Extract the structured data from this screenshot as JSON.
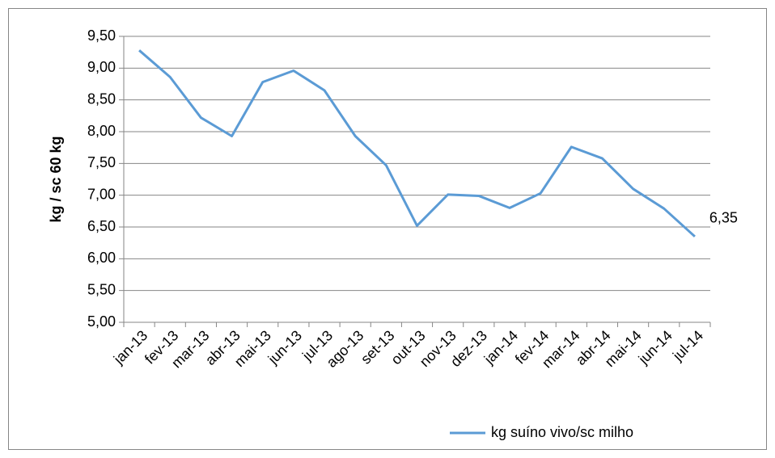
{
  "chart_data": {
    "type": "line",
    "y_label": "kg / sc 60 kg",
    "categories": [
      "jan-13",
      "fev-13",
      "mar-13",
      "abr-13",
      "mai-13",
      "jun-13",
      "jul-13",
      "ago-13",
      "set-13",
      "out-13",
      "nov-13",
      "dez-13",
      "jan-14",
      "fev-14",
      "mar-14",
      "abr-14",
      "mai-14",
      "jun-14",
      "jul-14"
    ],
    "series": [
      {
        "name": "kg suíno vivo/sc milho",
        "color": "#5b9bd5",
        "values": [
          9.28,
          8.86,
          8.22,
          7.93,
          8.78,
          8.96,
          8.65,
          7.93,
          7.47,
          6.52,
          7.01,
          6.99,
          6.8,
          7.03,
          7.76,
          7.58,
          7.1,
          6.79,
          6.35
        ],
        "value_labels": [
          null,
          null,
          null,
          null,
          null,
          null,
          null,
          null,
          null,
          null,
          null,
          null,
          null,
          null,
          null,
          null,
          null,
          null,
          "6,35"
        ]
      }
    ],
    "ylim": [
      5,
      9.5
    ],
    "yticks": [
      {
        "value": 5,
        "label": "5,00"
      },
      {
        "value": 5.5,
        "label": "5,50"
      },
      {
        "value": 6,
        "label": "6,00"
      },
      {
        "value": 6.5,
        "label": "6,50"
      },
      {
        "value": 7,
        "label": "7,00"
      },
      {
        "value": 7.5,
        "label": "7,50"
      },
      {
        "value": 8,
        "label": "8,00"
      },
      {
        "value": 8.5,
        "label": "8,50"
      },
      {
        "value": 9,
        "label": "9,00"
      },
      {
        "value": 9.5,
        "label": "9,50"
      }
    ],
    "grid": true,
    "legend": "bottom"
  }
}
